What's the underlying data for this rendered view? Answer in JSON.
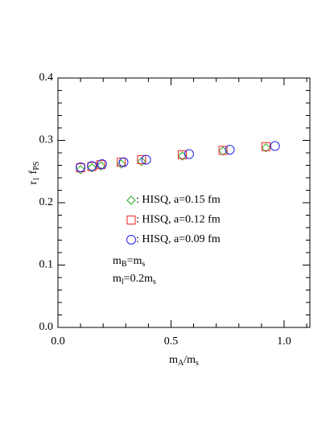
{
  "chart_data": {
    "type": "scatter",
    "xlabel": [
      "m",
      "A",
      "/m",
      "s"
    ],
    "ylabel": [
      "r",
      "1",
      " f",
      "PS"
    ],
    "xlim": [
      0,
      1.114
    ],
    "ylim": [
      0,
      0.4
    ],
    "xticks": [
      {
        "value": 0,
        "label": "0.0"
      },
      0.5,
      {
        "value": 1,
        "label": "1.0"
      }
    ],
    "yticks": [
      {
        "value": 0,
        "label": "0.0"
      },
      0.1,
      0.2,
      0.3,
      0.4
    ],
    "series": [
      {
        "name": ": HISQ, a=0.15 fm",
        "color": "#22aa22",
        "marker": "diamond",
        "x": [
          0.1,
          0.15,
          0.19,
          0.28,
          0.37,
          0.55,
          0.73,
          0.92
        ],
        "values": [
          0.253,
          0.256,
          0.259,
          0.262,
          0.266,
          0.275,
          0.283,
          0.288
        ]
      },
      {
        "name": ": HISQ, a=0.12 fm",
        "color": "#ee2222",
        "marker": "square",
        "x": [
          0.1,
          0.15,
          0.19,
          0.28,
          0.37,
          0.55,
          0.73,
          0.92
        ],
        "values": [
          0.256,
          0.258,
          0.261,
          0.265,
          0.269,
          0.277,
          0.284,
          0.29
        ]
      },
      {
        "name": ": HISQ, a=0.09 fm",
        "color": "#2222ee",
        "marker": "circle",
        "x": [
          0.1,
          0.15,
          0.195,
          0.29,
          0.39,
          0.58,
          0.76,
          0.96
        ],
        "values": [
          0.257,
          0.259,
          0.262,
          0.265,
          0.269,
          0.278,
          0.285,
          0.291
        ]
      }
    ],
    "annotations": [
      [
        "m",
        "B",
        "=m",
        "s"
      ],
      [
        "m",
        "l",
        "=0.2m",
        "s"
      ]
    ]
  }
}
